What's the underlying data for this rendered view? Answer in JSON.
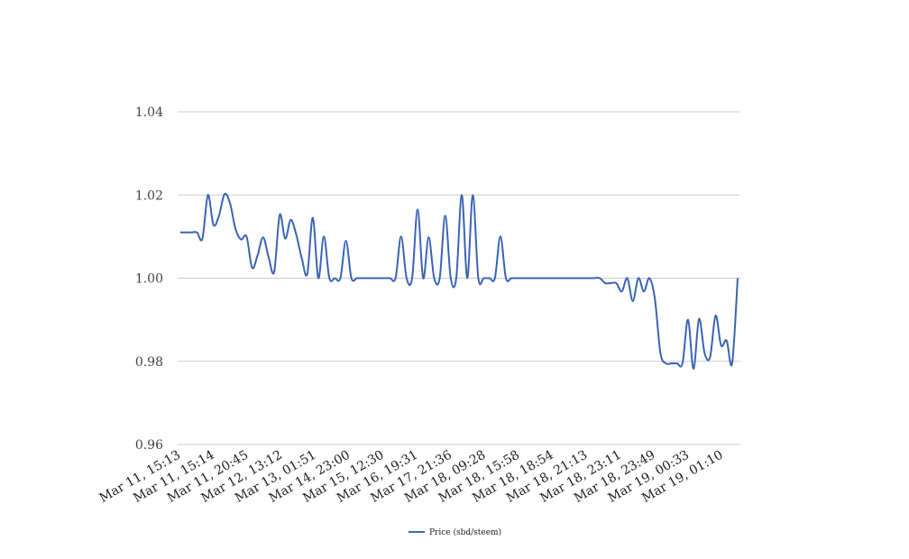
{
  "chart_data": {
    "type": "line",
    "title": "",
    "xlabel": "",
    "ylabel": "",
    "ylim": [
      0.96,
      1.04
    ],
    "yticks": [
      "1.04",
      "1.02",
      "1.00",
      "0.98",
      "0.96"
    ],
    "ytick_values": [
      1.04,
      1.02,
      1.0,
      0.98,
      0.96
    ],
    "x_tick_labels": [
      "Mar 11, 15:13",
      "Mar 11, 15:14",
      "Mar 11, 20:45",
      "Mar 12, 13:12",
      "Mar 13, 01:51",
      "Mar 14, 23:00",
      "Mar 15, 12:30",
      "Mar 16, 19:31",
      "Mar 17, 21:36",
      "Mar 18, 09:28",
      "Mar 18, 15:58",
      "Mar 18, 18:54",
      "Mar 18, 21:13",
      "Mar 18, 23:11",
      "Mar 18, 23:49",
      "Mar 19, 00:33",
      "Mar 19, 01:10"
    ],
    "grid": true,
    "legend_position": "bottom-center",
    "colors": {
      "series": "#3a64b4",
      "grid": "#cccccc"
    },
    "series": [
      {
        "name": "Price (sbd/steem)",
        "values": [
          1.011,
          1.011,
          1.011,
          1.011,
          1.0095,
          1.02,
          1.0128,
          1.015,
          1.0202,
          1.018,
          1.0118,
          1.0093,
          1.01,
          1.0025,
          1.0055,
          1.0098,
          1.005,
          1.0015,
          1.0152,
          1.0095,
          1.014,
          1.0105,
          1.0048,
          1.001,
          1.0145,
          1.0,
          1.01,
          1.0,
          1.0,
          1.0,
          1.009,
          1.0,
          1.0,
          1.0,
          1.0,
          1.0,
          1.0,
          1.0,
          1.0,
          1.0,
          1.01,
          1.0,
          1.0,
          1.0165,
          1.0,
          1.0098,
          1.0,
          1.0,
          1.015,
          1.0,
          1.0,
          1.02,
          1.0,
          1.02,
          1.0,
          1.0,
          1.0,
          1.0,
          1.01,
          1.0,
          1.0,
          1.0,
          1.0,
          1.0,
          1.0,
          1.0,
          1.0,
          1.0,
          1.0,
          1.0,
          1.0,
          1.0,
          1.0,
          1.0,
          1.0,
          1.0,
          1.0,
          0.9988,
          0.9988,
          0.9988,
          0.9968,
          1.0,
          0.9945,
          1.0,
          0.9968,
          1.0,
          0.995,
          0.982,
          0.9795,
          0.9795,
          0.9795,
          0.9795,
          0.99,
          0.9782,
          0.9902,
          0.982,
          0.981,
          0.991,
          0.9838,
          0.985,
          0.9795,
          1.0
        ]
      }
    ]
  }
}
